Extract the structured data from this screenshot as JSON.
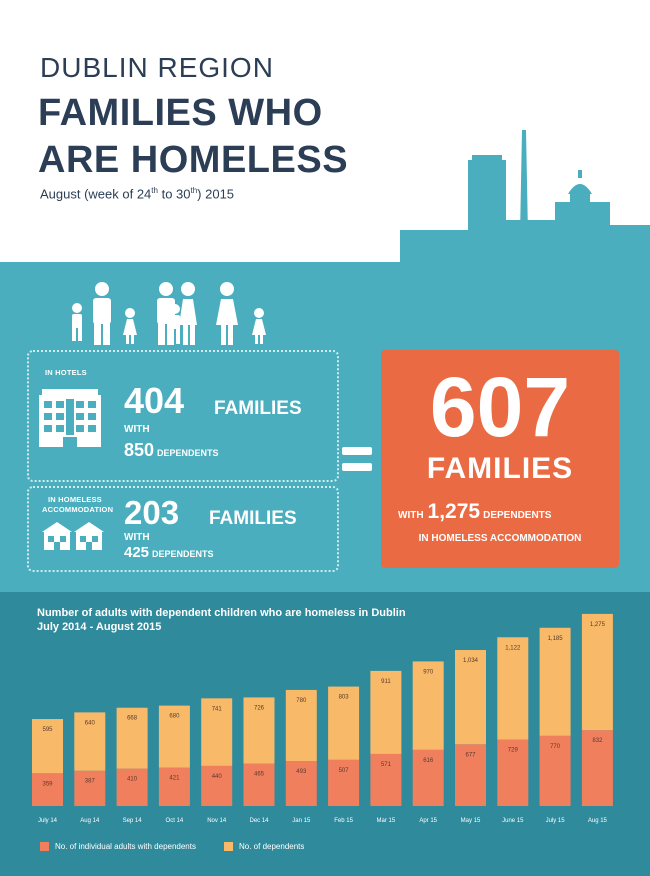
{
  "header": {
    "region": "DUBLIN REGION",
    "title_line1": "FAMILIES WHO",
    "title_line2": "ARE HOMELESS",
    "subtitle_pre": "August (week of 24",
    "subtitle_sup1": "th",
    "subtitle_mid": " to 30",
    "subtitle_sup2": "th",
    "subtitle_post": ") 2015"
  },
  "hotels": {
    "label": "IN HOTELS",
    "families": "404",
    "families_word": "FAMILIES",
    "with": "WITH",
    "dependents": "850",
    "dependents_word": "DEPENDENTS"
  },
  "homeless_accommodation": {
    "label_line1": "IN HOMELESS",
    "label_line2": "ACCOMMODATION",
    "families": "203",
    "families_word": "FAMILIES",
    "with": "WITH",
    "dependents": "425",
    "dependents_word": "DEPENDENTS"
  },
  "total": {
    "families": "607",
    "families_word": "FAMILIES",
    "with": "WITH",
    "dependents": "1,275",
    "dependents_word": "DEPENDENTS",
    "footer": "IN HOMELESS ACCOMMODATION"
  },
  "colors": {
    "teal": "#4aaebe",
    "teal_dark": "#2f8a9c",
    "orange": "#ea6a43",
    "bar_adults": "#f07f5e",
    "bar_dependents": "#f8b968",
    "navy": "#2c3e55"
  },
  "chart_data": {
    "type": "bar",
    "stacked": true,
    "title": "Number of adults with dependent children who are homeless in Dublin",
    "subtitle": "July 2014 - August 2015",
    "categories": [
      "July 14",
      "Aug 14",
      "Sep 14",
      "Oct 14",
      "Nov 14",
      "Dec 14",
      "Jan 15",
      "Feb 15",
      "Mar 15",
      "Apr 15",
      "May 15",
      "June 15",
      "July 15",
      "Aug 15"
    ],
    "series": [
      {
        "name": "No. of individual adults with dependents",
        "color": "#f07f5e",
        "values": [
          359,
          387,
          410,
          421,
          440,
          465,
          493,
          507,
          571,
          616,
          677,
          729,
          770,
          832
        ]
      },
      {
        "name": "No. of dependents",
        "color": "#f8b968",
        "values": [
          595,
          640,
          668,
          680,
          741,
          726,
          780,
          803,
          911,
          970,
          1034,
          1122,
          1185,
          1275
        ]
      }
    ],
    "ylim": [
      0,
      2150
    ],
    "grid": false,
    "legend": "bottom-left"
  }
}
